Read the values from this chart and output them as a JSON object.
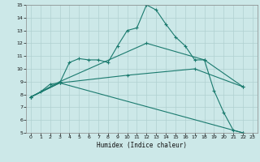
{
  "xlabel": "Humidex (Indice chaleur)",
  "xlim": [
    -0.5,
    23.5
  ],
  "ylim": [
    5,
    15
  ],
  "xticks": [
    0,
    1,
    2,
    3,
    4,
    5,
    6,
    7,
    8,
    9,
    10,
    11,
    12,
    13,
    14,
    15,
    16,
    17,
    18,
    19,
    20,
    21,
    22,
    23
  ],
  "yticks": [
    5,
    6,
    7,
    8,
    9,
    10,
    11,
    12,
    13,
    14,
    15
  ],
  "bg_color": "#cce8e8",
  "grid_color": "#b0d0d0",
  "line_color": "#1a7a6e",
  "line1_x": [
    0,
    1,
    2,
    3,
    4,
    5,
    6,
    7,
    8,
    9,
    10,
    11,
    12,
    13,
    14,
    15,
    16,
    17,
    18,
    19,
    20,
    21,
    22
  ],
  "line1_y": [
    7.8,
    8.2,
    8.8,
    8.9,
    10.5,
    10.8,
    10.7,
    10.7,
    10.5,
    11.8,
    13.0,
    13.2,
    15.0,
    14.6,
    13.5,
    12.5,
    11.8,
    10.7,
    10.7,
    8.3,
    6.6,
    5.2,
    5.0
  ],
  "line2_x": [
    0,
    3,
    12,
    18,
    22
  ],
  "line2_y": [
    7.8,
    9.0,
    12.0,
    10.7,
    8.6
  ],
  "line3_x": [
    0,
    3,
    10,
    17,
    22
  ],
  "line3_y": [
    7.8,
    8.9,
    9.5,
    10.0,
    8.6
  ],
  "line4_x": [
    0,
    3,
    22
  ],
  "line4_y": [
    7.8,
    8.9,
    5.0
  ]
}
